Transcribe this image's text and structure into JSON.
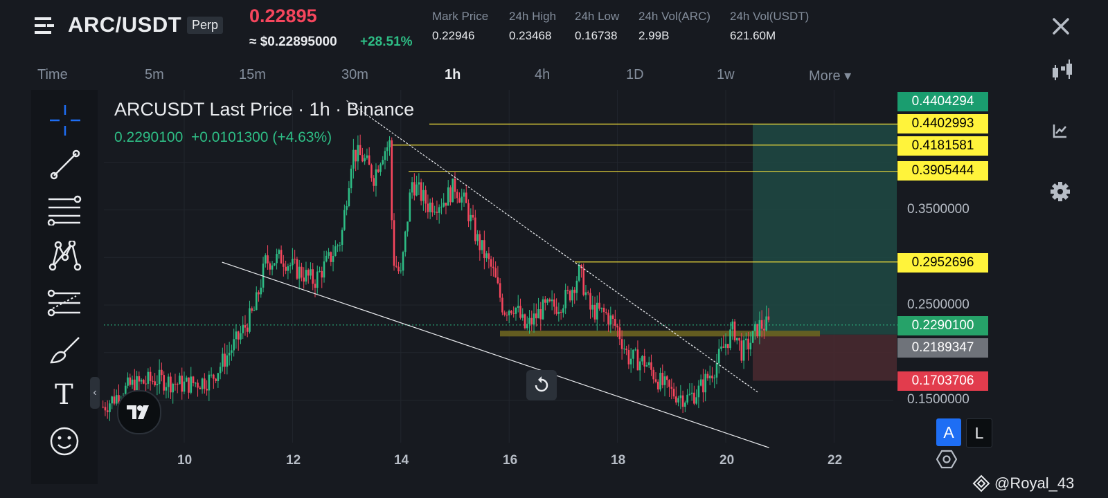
{
  "header": {
    "symbol": "ARC/USDT",
    "contract_type": "Perp",
    "last_price": "0.22895",
    "usd_price": "≈ $0.22895000",
    "change_pct": "+28.51%",
    "stats": [
      {
        "label": "Mark Price",
        "value": "0.22946"
      },
      {
        "label": "24h High",
        "value": "0.23468"
      },
      {
        "label": "24h Low",
        "value": "0.16738"
      },
      {
        "label": "24h Vol(ARC)",
        "value": "2.99B"
      },
      {
        "label": "24h Vol(USDT)",
        "value": "621.60M"
      }
    ]
  },
  "timeframes": [
    {
      "label": "Time",
      "active": false
    },
    {
      "label": "5m",
      "active": false
    },
    {
      "label": "15m",
      "active": false
    },
    {
      "label": "30m",
      "active": false
    },
    {
      "label": "1h",
      "active": true
    },
    {
      "label": "4h",
      "active": false
    },
    {
      "label": "1D",
      "active": false
    },
    {
      "label": "1w",
      "active": false
    },
    {
      "label": "More ▾",
      "active": false
    }
  ],
  "chart_data": {
    "type": "candlestick",
    "title": "ARCUSDT Last Price · 1h · Binance",
    "last_price": "0.2290100",
    "change": "+0.0101300 (+4.63%)",
    "x_tick_labels": [
      "10",
      "12",
      "14",
      "16",
      "18",
      "20",
      "22"
    ],
    "y_tick_labels": [
      "0.3500000",
      "0.2500000",
      "0.1500000"
    ],
    "y_ticks": [
      0.35,
      0.25,
      0.15
    ],
    "price_tags": [
      {
        "value": "0.4404294",
        "color": "#1a9d6f",
        "text_color": "#ffffff"
      },
      {
        "value": "0.4402993",
        "color": "#fff33b",
        "text_color": "#000000"
      },
      {
        "value": "0.4181581",
        "color": "#fff33b",
        "text_color": "#000000"
      },
      {
        "value": "0.3905444",
        "color": "#fff33b",
        "text_color": "#000000"
      },
      {
        "value": "0.2952696",
        "color": "#fff33b",
        "text_color": "#000000"
      },
      {
        "value": "0.2290100",
        "color": "#26a269",
        "text_color": "#ffffff"
      },
      {
        "value": "0.2189347",
        "color": "#6f737a",
        "text_color": "#ffffff"
      },
      {
        "value": "0.1703706",
        "color": "#e23c4d",
        "text_color": "#ffffff"
      }
    ],
    "horizontal_levels": [
      0.4403,
      0.4182,
      0.3905,
      0.2953
    ],
    "support_zone": [
      0.217,
      0.223
    ],
    "take_profit": 0.4404,
    "entry": 0.2189,
    "stop_loss": 0.1704,
    "path": [
      [
        8.5,
        0.143
      ],
      [
        9.0,
        0.165
      ],
      [
        9.5,
        0.172
      ],
      [
        10.0,
        0.166
      ],
      [
        10.5,
        0.172
      ],
      [
        11.0,
        0.215
      ],
      [
        11.3,
        0.245
      ],
      [
        11.5,
        0.295
      ],
      [
        11.8,
        0.3
      ],
      [
        12.0,
        0.29
      ],
      [
        12.4,
        0.275
      ],
      [
        12.7,
        0.3
      ],
      [
        12.9,
        0.32
      ],
      [
        13.1,
        0.41
      ],
      [
        13.3,
        0.405
      ],
      [
        13.5,
        0.385
      ],
      [
        13.65,
        0.41
      ],
      [
        13.8,
        0.42
      ],
      [
        13.85,
        0.3
      ],
      [
        14.0,
        0.28
      ],
      [
        14.2,
        0.38
      ],
      [
        14.5,
        0.355
      ],
      [
        14.8,
        0.36
      ],
      [
        15.0,
        0.375
      ],
      [
        15.2,
        0.355
      ],
      [
        15.4,
        0.32
      ],
      [
        15.7,
        0.285
      ],
      [
        15.9,
        0.245
      ],
      [
        16.1,
        0.25
      ],
      [
        16.3,
        0.225
      ],
      [
        16.6,
        0.245
      ],
      [
        16.9,
        0.25
      ],
      [
        17.1,
        0.26
      ],
      [
        17.3,
        0.285
      ],
      [
        17.5,
        0.245
      ],
      [
        17.8,
        0.24
      ],
      [
        18.0,
        0.225
      ],
      [
        18.2,
        0.195
      ],
      [
        18.5,
        0.19
      ],
      [
        18.8,
        0.168
      ],
      [
        19.0,
        0.158
      ],
      [
        19.3,
        0.152
      ],
      [
        19.5,
        0.16
      ],
      [
        19.8,
        0.185
      ],
      [
        20.0,
        0.21
      ],
      [
        20.15,
        0.225
      ],
      [
        20.3,
        0.2
      ],
      [
        20.5,
        0.215
      ],
      [
        20.6,
        0.228
      ],
      [
        20.8,
        0.229
      ]
    ],
    "resistance_trendline": [
      [
        13.0,
        0.465
      ],
      [
        20.6,
        0.158
      ]
    ],
    "support_trendline": [
      [
        10.7,
        0.295
      ],
      [
        20.8,
        0.1
      ]
    ]
  },
  "tools": [
    "crosshair-icon",
    "trendline-icon",
    "fib-icon",
    "pattern-icon",
    "projection-icon",
    "brush-icon",
    "text-icon",
    "emoji-icon"
  ],
  "buttons": {
    "auto": "A",
    "log": "L"
  },
  "watermark": "@Royal_43"
}
